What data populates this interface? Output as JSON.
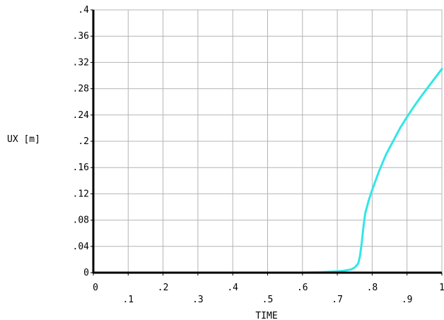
{
  "chart_data": {
    "type": "line",
    "xlabel": "TIME",
    "ylabel": "UX [m]",
    "xlim": [
      0,
      1
    ],
    "ylim": [
      0,
      0.4
    ],
    "grid": true,
    "x_ticks": [
      "0",
      ".1",
      ".2",
      ".3",
      ".4",
      ".5",
      ".6",
      ".7",
      ".8",
      ".9",
      "1"
    ],
    "y_ticks": [
      "0",
      ".04",
      ".08",
      ".12",
      ".16",
      ".2",
      ".24",
      ".28",
      ".32",
      ".36",
      ".4"
    ],
    "x_tick_values": [
      0,
      0.1,
      0.2,
      0.3,
      0.4,
      0.5,
      0.6,
      0.7,
      0.8,
      0.9,
      1
    ],
    "y_tick_values": [
      0,
      0.04,
      0.08,
      0.12,
      0.16,
      0.2,
      0.24,
      0.28,
      0.32,
      0.36,
      0.4
    ],
    "series": [
      {
        "color": "#33e6e6",
        "x": [
          0,
          0.1,
          0.2,
          0.3,
          0.4,
          0.5,
          0.55,
          0.6,
          0.65,
          0.7,
          0.72,
          0.74,
          0.75,
          0.76,
          0.765,
          0.77,
          0.775,
          0.78,
          0.79,
          0.8,
          0.82,
          0.84,
          0.86,
          0.88,
          0.9,
          0.92,
          0.94,
          0.96,
          0.98,
          1.0
        ],
        "y": [
          0,
          0,
          0,
          0,
          0,
          0,
          0,
          0,
          0.0005,
          0.002,
          0.003,
          0.005,
          0.008,
          0.014,
          0.025,
          0.045,
          0.07,
          0.09,
          0.11,
          0.126,
          0.155,
          0.18,
          0.2,
          0.22,
          0.237,
          0.253,
          0.268,
          0.282,
          0.296,
          0.31
        ]
      }
    ]
  },
  "colors": {
    "grid": "#b4b4b4",
    "axes": "#000000",
    "series": "#33e6e6"
  }
}
